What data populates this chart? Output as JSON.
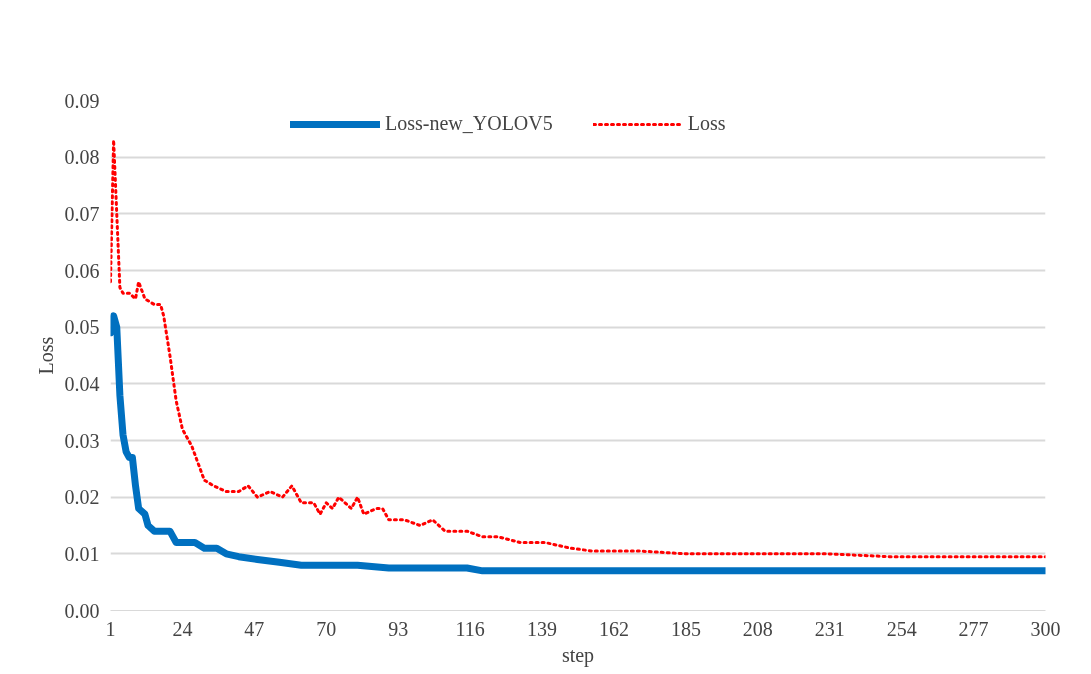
{
  "chart_data": {
    "type": "line",
    "xlabel": "step",
    "ylabel": "Loss",
    "xlim": [
      1,
      300
    ],
    "xticks": [
      1,
      24,
      47,
      70,
      93,
      116,
      139,
      162,
      185,
      208,
      231,
      254,
      277,
      300
    ],
    "ylim": [
      0,
      0.09
    ],
    "yticks": [
      {
        "value": 0,
        "label": "0.00"
      },
      {
        "value": 0.01,
        "label": "0.01"
      },
      {
        "value": 0.02,
        "label": "0.02"
      },
      {
        "value": 0.03,
        "label": "0.03"
      },
      {
        "value": 0.04,
        "label": "0.04"
      },
      {
        "value": 0.05,
        "label": "0.05"
      },
      {
        "value": 0.06,
        "label": "0.06"
      },
      {
        "value": 0.07,
        "label": "0.07"
      },
      {
        "value": 0.08,
        "label": "0.08"
      },
      {
        "value": 0.09,
        "label": "0.09"
      }
    ],
    "grid": "y",
    "legend": "top",
    "series": [
      {
        "name": "Loss-new_YOLOV5",
        "color": "#0070c0",
        "line_style": "solid",
        "x": [
          1,
          2,
          3,
          4,
          5,
          6,
          7,
          8,
          9,
          10,
          12,
          13,
          15,
          18,
          20,
          22,
          28,
          31,
          35,
          38,
          42,
          48,
          55,
          62,
          70,
          80,
          90,
          100,
          115,
          120,
          150,
          160,
          200,
          300
        ],
        "values": [
          0.049,
          0.052,
          0.05,
          0.038,
          0.031,
          0.028,
          0.027,
          0.027,
          0.022,
          0.018,
          0.017,
          0.015,
          0.014,
          0.014,
          0.014,
          0.012,
          0.012,
          0.011,
          0.011,
          0.01,
          0.0095,
          0.009,
          0.0085,
          0.008,
          0.008,
          0.008,
          0.0075,
          0.0075,
          0.0075,
          0.007,
          0.007,
          0.007,
          0.007,
          0.007
        ]
      },
      {
        "name": "Loss",
        "color": "#ff0000",
        "line_style": "dotted",
        "x": [
          1,
          2,
          3,
          4,
          5,
          7,
          9,
          10,
          12,
          15,
          17,
          18,
          20,
          22,
          24,
          27,
          29,
          31,
          34,
          38,
          42,
          45,
          48,
          52,
          56,
          59,
          62,
          66,
          68,
          70,
          72,
          74,
          78,
          80,
          82,
          86,
          88,
          90,
          95,
          100,
          104,
          108,
          115,
          120,
          125,
          132,
          140,
          148,
          155,
          170,
          185,
          200,
          230,
          250,
          270,
          300
        ],
        "values": [
          0.058,
          0.083,
          0.07,
          0.057,
          0.056,
          0.056,
          0.055,
          0.058,
          0.055,
          0.054,
          0.054,
          0.052,
          0.045,
          0.037,
          0.032,
          0.029,
          0.026,
          0.023,
          0.022,
          0.021,
          0.021,
          0.022,
          0.02,
          0.021,
          0.02,
          0.022,
          0.019,
          0.019,
          0.017,
          0.019,
          0.018,
          0.02,
          0.018,
          0.02,
          0.017,
          0.018,
          0.018,
          0.016,
          0.016,
          0.015,
          0.016,
          0.014,
          0.014,
          0.013,
          0.013,
          0.012,
          0.012,
          0.011,
          0.0105,
          0.0105,
          0.01,
          0.01,
          0.01,
          0.0095,
          0.0095,
          0.0095
        ]
      }
    ]
  }
}
